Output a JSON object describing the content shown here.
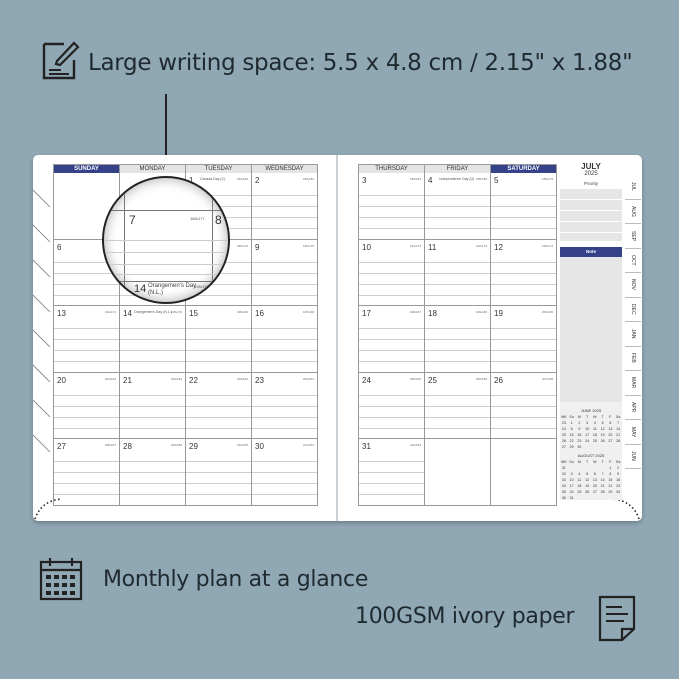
{
  "headline": "Large writing space: 5.5 x 4.8 cm / 2.15\" x 1.88\"",
  "feature_1": "Monthly plan at a glance",
  "feature_2": "100GSM ivory paper",
  "colors": {
    "background": "#90a7b4",
    "accent": "#35428a"
  },
  "icons": {
    "headline": "pencil-note-icon",
    "feature_1": "calendar-icon",
    "feature_2": "document-icon"
  },
  "left_page": {
    "headers": [
      "SUNDAY",
      "MONDAY",
      "TUESDAY",
      "WEDNESDAY"
    ],
    "weeks": [
      [
        {
          "d": ""
        },
        {
          "d": ""
        },
        {
          "d": "1",
          "doy": "182•183",
          "hol": "Canada Day (C)"
        },
        {
          "d": "2",
          "doy": "183•182"
        }
      ],
      [
        {
          "d": "6",
          "doy": "187•178"
        },
        {
          "d": "7",
          "doy": "188•177"
        },
        {
          "d": "8",
          "doy": "189•176"
        },
        {
          "d": "9",
          "doy": "190•175"
        }
      ],
      [
        {
          "d": "13",
          "doy": "194•171"
        },
        {
          "d": "14",
          "doy": "195•170",
          "hol": "Orangemen's Day (N.L.)"
        },
        {
          "d": "15",
          "doy": "196•169"
        },
        {
          "d": "16",
          "doy": "197•168"
        }
      ],
      [
        {
          "d": "20",
          "doy": "201•164"
        },
        {
          "d": "21",
          "doy": "202•163"
        },
        {
          "d": "22",
          "doy": "203•162"
        },
        {
          "d": "23",
          "doy": "204•161"
        }
      ],
      [
        {
          "d": "27",
          "doy": "208•157"
        },
        {
          "d": "28",
          "doy": "209•156"
        },
        {
          "d": "29",
          "doy": "210•155"
        },
        {
          "d": "30",
          "doy": "211•154"
        }
      ]
    ]
  },
  "right_page": {
    "headers": [
      "THURSDAY",
      "FRIDAY",
      "SATURDAY"
    ],
    "weeks": [
      [
        {
          "d": "3",
          "doy": "184•181"
        },
        {
          "d": "4",
          "doy": "185•180",
          "hol": "Independence Day (U)"
        },
        {
          "d": "5",
          "doy": "186•179"
        }
      ],
      [
        {
          "d": "10",
          "doy": "191•174"
        },
        {
          "d": "11",
          "doy": "192•173"
        },
        {
          "d": "12",
          "doy": "193•172"
        }
      ],
      [
        {
          "d": "17",
          "doy": "198•167"
        },
        {
          "d": "18",
          "doy": "199•166"
        },
        {
          "d": "19",
          "doy": "200•165"
        }
      ],
      [
        {
          "d": "24",
          "doy": "205•160"
        },
        {
          "d": "25",
          "doy": "206•159"
        },
        {
          "d": "26",
          "doy": "207•158"
        }
      ],
      [
        {
          "d": "31",
          "doy": "212•153"
        },
        {
          "d": ""
        },
        {
          "d": ""
        }
      ]
    ]
  },
  "sidebar": {
    "month": "JULY",
    "year": "2025",
    "priority": "Priority",
    "note": "Note",
    "mini_calendars": [
      {
        "title": "JUNE 2025",
        "head": [
          "WK",
          "Su",
          "M",
          "T",
          "W",
          "T",
          "F",
          "Sa"
        ],
        "rows": [
          [
            "23",
            "1",
            "2",
            "3",
            "4",
            "5",
            "6",
            "7"
          ],
          [
            "24",
            "8",
            "9",
            "10",
            "11",
            "12",
            "13",
            "14"
          ],
          [
            "25",
            "15",
            "16",
            "17",
            "18",
            "19",
            "20",
            "21"
          ],
          [
            "26",
            "22",
            "23",
            "24",
            "25",
            "26",
            "27",
            "28"
          ],
          [
            "27",
            "29",
            "30",
            "",
            "",
            "",
            "",
            ""
          ]
        ]
      },
      {
        "title": "AUGUST 2025",
        "head": [
          "WK",
          "Su",
          "M",
          "T",
          "W",
          "T",
          "F",
          "Sa"
        ],
        "rows": [
          [
            "31",
            "",
            "",
            "",
            "",
            "",
            "1",
            "2"
          ],
          [
            "32",
            "3",
            "4",
            "5",
            "6",
            "7",
            "8",
            "9"
          ],
          [
            "33",
            "10",
            "11",
            "12",
            "13",
            "14",
            "15",
            "16"
          ],
          [
            "34",
            "17",
            "18",
            "19",
            "20",
            "21",
            "22",
            "23"
          ],
          [
            "35",
            "24",
            "25",
            "26",
            "27",
            "28",
            "29",
            "30"
          ],
          [
            "36",
            "31",
            "",
            "",
            "",
            "",
            "",
            ""
          ]
        ]
      }
    ]
  },
  "tabs": [
    "JUL",
    "AUG",
    "SEP",
    "OCT",
    "NOV",
    "DEC",
    "JAN",
    "FEB",
    "MAR",
    "APR",
    "MAY",
    "JUN"
  ],
  "magnifier": {
    "d1": "7",
    "doy1": "188•177",
    "d2": "8",
    "d3": "14",
    "hol3": "Orangemen's Day",
    "hol3b": "(N.L.)",
    "doy3": "195•170"
  }
}
